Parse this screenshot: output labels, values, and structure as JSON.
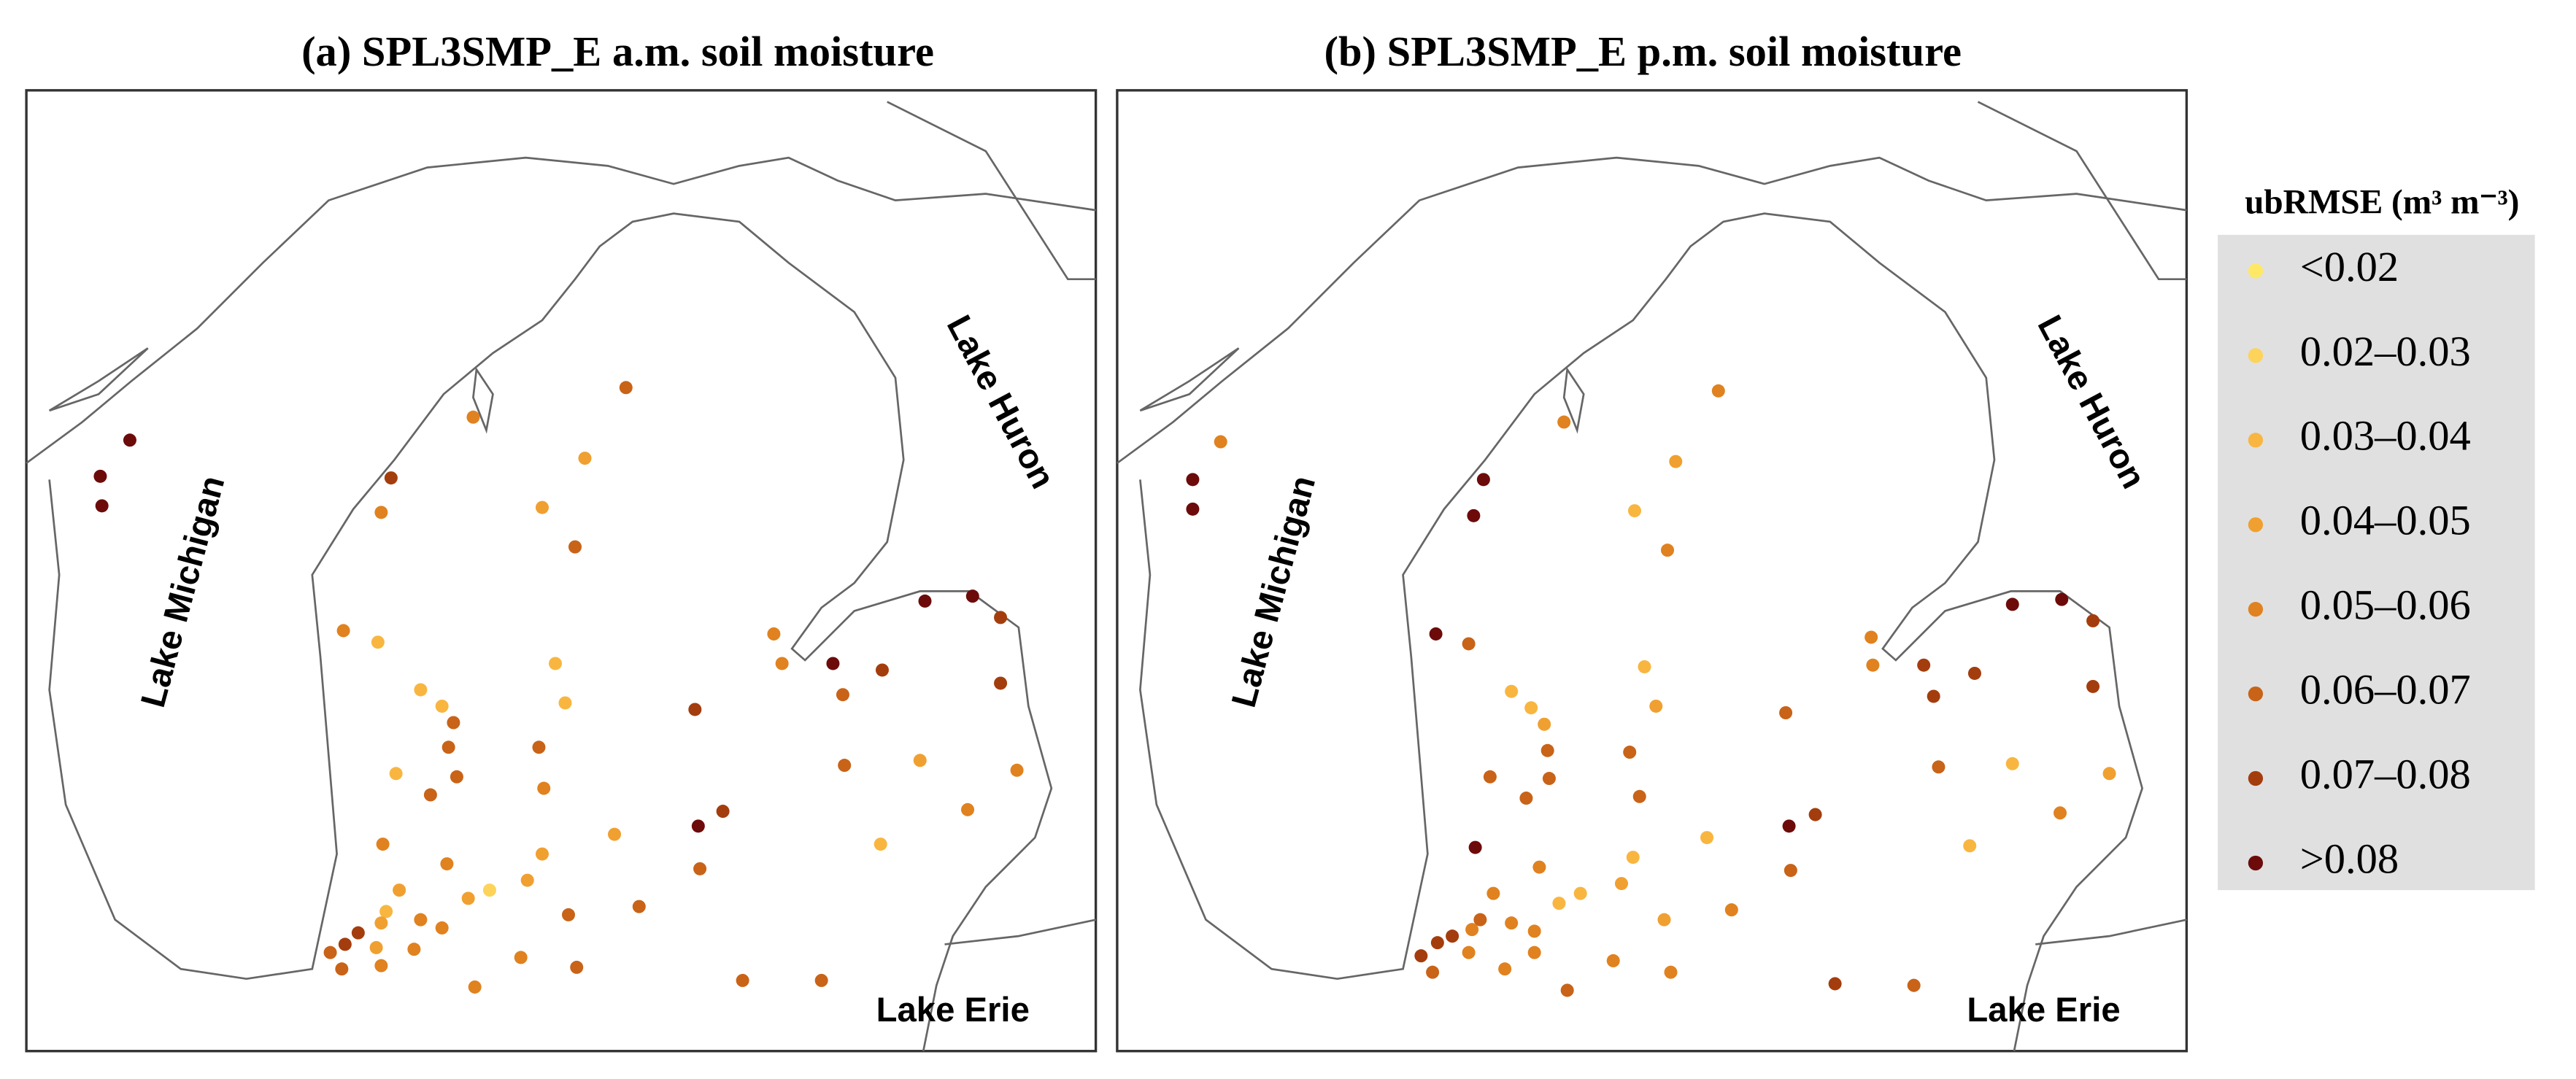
{
  "panels": [
    {
      "title": "(a) SPL3SMP_E  a.m. soil moisture",
      "lake_michigan": "Lake Michigan",
      "lake_huron": "Lake Huron",
      "lake_erie": "Lake Erie"
    },
    {
      "title": "(b) SPL3SMP_E  p.m. soil moisture",
      "lake_michigan": "Lake Michigan",
      "lake_huron": "Lake Huron",
      "lake_erie": "Lake Erie"
    }
  ],
  "legend": {
    "title": "ubRMSE (m³ m⁻³)",
    "items": [
      {
        "label": "<0.02",
        "color": "#ffe866"
      },
      {
        "label": "0.02–0.03",
        "color": "#fdd35a"
      },
      {
        "label": "0.03–0.04",
        "color": "#f8b640"
      },
      {
        "label": "0.04–0.05",
        "color": "#f0a030"
      },
      {
        "label": "0.05–0.06",
        "color": "#e0821f"
      },
      {
        "label": "0.06–0.07",
        "color": "#c86318"
      },
      {
        "label": "0.07–0.08",
        "color": "#a43d0d"
      },
      {
        "label": ">0.08",
        "color": "#6d0b0b"
      }
    ]
  }
}
